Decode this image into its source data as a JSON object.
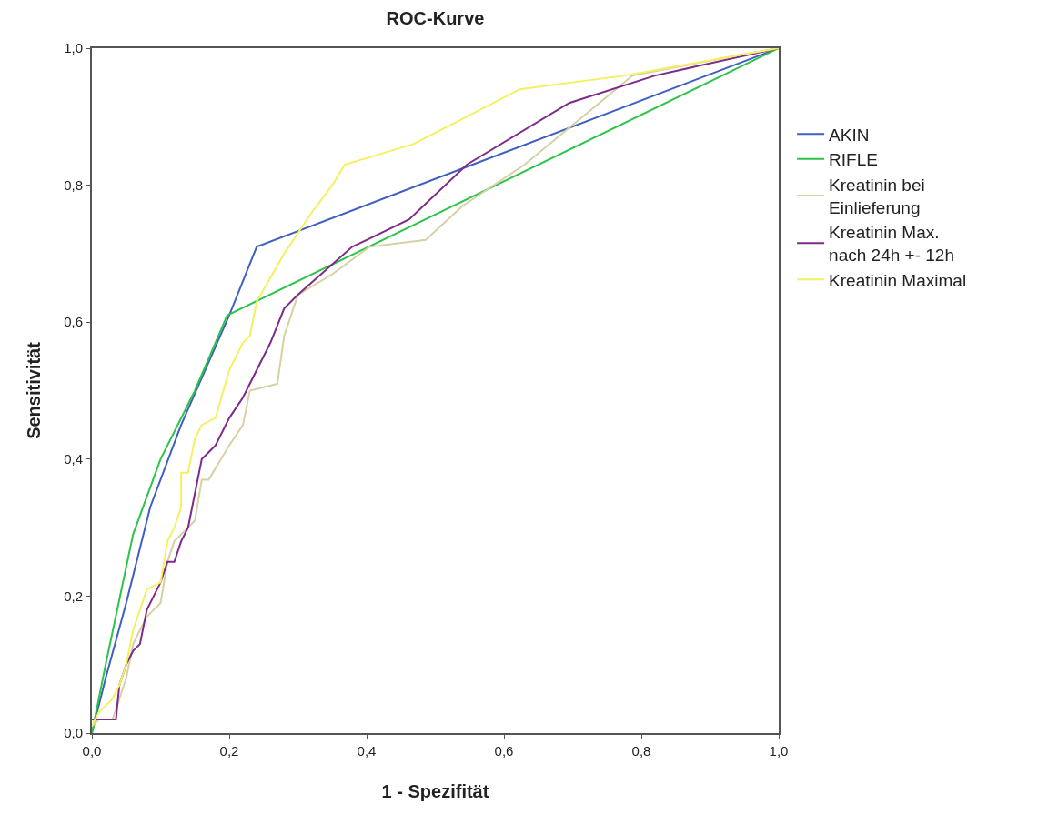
{
  "chart_data": {
    "type": "line",
    "title": "ROC-Kurve",
    "xlabel": "1 - Spezifität",
    "ylabel": "Sensitivität",
    "xlim": [
      0,
      1
    ],
    "ylim": [
      0,
      1
    ],
    "xticks": [
      {
        "value": 0,
        "label": "0,0"
      },
      {
        "value": 0.2,
        "label": "0,2"
      },
      {
        "value": 0.4,
        "label": "0,4"
      },
      {
        "value": 0.6,
        "label": "0,6"
      },
      {
        "value": 0.8,
        "label": "0,8"
      },
      {
        "value": 1,
        "label": "1,0"
      }
    ],
    "yticks": [
      {
        "value": 0,
        "label": "0,0"
      },
      {
        "value": 0.2,
        "label": "0,2"
      },
      {
        "value": 0.4,
        "label": "0,4"
      },
      {
        "value": 0.6,
        "label": "0,6"
      },
      {
        "value": 0.8,
        "label": "0,8"
      },
      {
        "value": 1,
        "label": "1,0"
      }
    ],
    "legend": "right",
    "marker": "none",
    "line_style": "solid",
    "series": [
      {
        "name": "AKIN",
        "color": "#3e5fc1",
        "x": [
          0,
          0.02,
          0.05,
          0.085,
          0.13,
          0.2,
          0.24,
          1
        ],
        "values": [
          0,
          0.08,
          0.19,
          0.33,
          0.45,
          0.61,
          0.71,
          1
        ]
      },
      {
        "name": "RIFLE",
        "color": "#2ec34a",
        "x": [
          0,
          0.02,
          0.06,
          0.1,
          0.15,
          0.197,
          1
        ],
        "values": [
          0,
          0.1,
          0.29,
          0.4,
          0.5,
          0.61,
          1
        ]
      },
      {
        "name": "Kreatinin bei\nEinlieferung",
        "color": "#d6d0a3",
        "x": [
          0,
          0.01,
          0.03,
          0.04,
          0.05,
          0.06,
          0.07,
          0.08,
          0.1,
          0.11,
          0.12,
          0.15,
          0.16,
          0.17,
          0.2,
          0.22,
          0.23,
          0.27,
          0.28,
          0.3,
          0.35,
          0.404,
          0.486,
          0.54,
          0.63,
          0.787,
          0.943,
          1
        ],
        "values": [
          0.01,
          0.02,
          0.02,
          0.05,
          0.08,
          0.13,
          0.15,
          0.17,
          0.19,
          0.25,
          0.28,
          0.31,
          0.37,
          0.37,
          0.42,
          0.45,
          0.5,
          0.51,
          0.58,
          0.64,
          0.67,
          0.71,
          0.72,
          0.77,
          0.83,
          0.96,
          0.99,
          1
        ]
      },
      {
        "name": "Kreatinin Max.\nnach 24h +- 12h",
        "color": "#7e2a8a",
        "x": [
          0,
          0.035,
          0.04,
          0.05,
          0.06,
          0.07,
          0.08,
          0.09,
          0.1,
          0.11,
          0.12,
          0.13,
          0.14,
          0.15,
          0.16,
          0.17,
          0.18,
          0.2,
          0.22,
          0.26,
          0.28,
          0.3,
          0.379,
          0.4,
          0.462,
          0.546,
          0.695,
          0.82,
          1
        ],
        "values": [
          0.02,
          0.02,
          0.07,
          0.1,
          0.12,
          0.13,
          0.18,
          0.2,
          0.22,
          0.25,
          0.25,
          0.28,
          0.3,
          0.35,
          0.4,
          0.41,
          0.42,
          0.46,
          0.49,
          0.57,
          0.62,
          0.64,
          0.71,
          0.72,
          0.75,
          0.83,
          0.92,
          0.96,
          1
        ]
      },
      {
        "name": "Kreatinin Maximal",
        "color": "#f5f060",
        "x": [
          0,
          0.01,
          0.03,
          0.04,
          0.05,
          0.06,
          0.07,
          0.08,
          0.1,
          0.11,
          0.12,
          0.13,
          0.13,
          0.14,
          0.15,
          0.16,
          0.18,
          0.2,
          0.22,
          0.23,
          0.24,
          0.28,
          0.32,
          0.35,
          0.368,
          0.468,
          0.623,
          0.776,
          1
        ],
        "values": [
          0.01,
          0.03,
          0.05,
          0.07,
          0.1,
          0.15,
          0.18,
          0.21,
          0.22,
          0.28,
          0.3,
          0.33,
          0.38,
          0.38,
          0.43,
          0.45,
          0.46,
          0.53,
          0.57,
          0.58,
          0.63,
          0.7,
          0.76,
          0.8,
          0.83,
          0.86,
          0.94,
          0.96,
          1
        ]
      }
    ]
  }
}
